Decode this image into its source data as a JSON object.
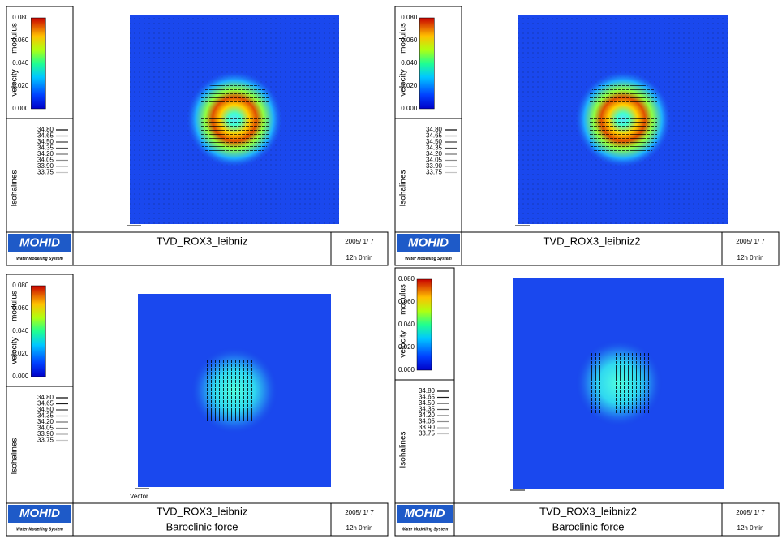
{
  "panels": [
    {
      "colorbar_label": [
        "velocity",
        "modulus"
      ],
      "colorbar_ticks": [
        "0.080",
        "0.060",
        "0.040",
        "0.020",
        "0.000"
      ],
      "isolines_title": "Isohalines",
      "isolines": [
        "34.80",
        "34.65",
        "34.50",
        "34.35",
        "34.20",
        "34.05",
        "33.90",
        "33.75"
      ],
      "logo": "MOHID",
      "logo_caption": "Water Modelling System",
      "title": "TVD_ROX3_leibniz",
      "date": "2005/ 1/ 7",
      "time": "12h 0min"
    },
    {
      "colorbar_label": [
        "velocity",
        "modulus"
      ],
      "colorbar_ticks": [
        "0.080",
        "0.060",
        "0.040",
        "0.020",
        "0.000"
      ],
      "isolines_title": "Isohalines",
      "isolines": [
        "34.80",
        "34.65",
        "34.50",
        "34.35",
        "34.20",
        "34.05",
        "33.90",
        "33.75"
      ],
      "logo": "MOHID",
      "logo_caption": "Water Modelling System",
      "title": "TVD_ROX3_leibniz2",
      "date": "2005/ 1/ 7",
      "time": "12h 0min"
    },
    {
      "colorbar_label": [
        "velocity",
        "modulus"
      ],
      "colorbar_ticks": [
        "0.080",
        "0.060",
        "0.040",
        "0.020",
        "0.000"
      ],
      "isolines_title": "Isohalines",
      "isolines": [
        "34.80",
        "34.65",
        "34.50",
        "34.35",
        "34.20",
        "34.05",
        "33.90",
        "33.75"
      ],
      "logo": "MOHID",
      "logo_caption": "Water Modelling System",
      "title": "TVD_ROX3_leibniz",
      "subtitle": "Baroclinic force",
      "vector_label": "Vector",
      "date": "2005/ 1/ 7",
      "time": "12h 0min"
    },
    {
      "colorbar_label": [
        "velocity",
        "modulus"
      ],
      "colorbar_ticks": [
        "0.080",
        "0.060",
        "0.040",
        "0.020",
        "0.000"
      ],
      "isolines_title": "Isohalines",
      "isolines": [
        "34.80",
        "34.65",
        "34.50",
        "34.35",
        "34.20",
        "34.05",
        "33.90",
        "33.75"
      ],
      "logo": "MOHID",
      "logo_caption": "Water Modelling System",
      "title": "TVD_ROX3_leibniz2",
      "subtitle": "Baroclinic force",
      "date": "2005/ 1/ 7",
      "time": "12h 0min"
    }
  ]
}
